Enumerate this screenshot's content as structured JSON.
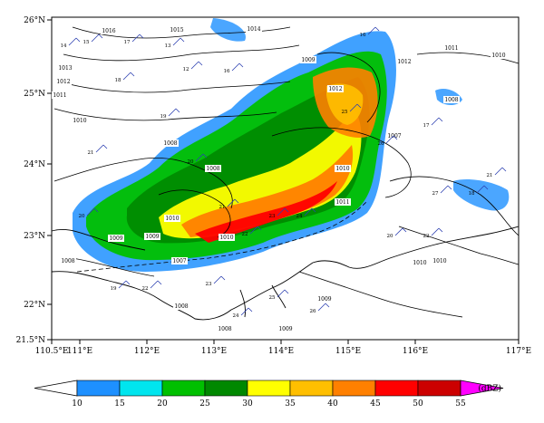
{
  "map": {
    "lon_ticks": [
      "110.5°E",
      "111°E",
      "112°E",
      "113°E",
      "114°E",
      "115°E",
      "116°E",
      "117°E"
    ],
    "lat_ticks": [
      "21.5°N",
      "22°N",
      "23°N",
      "24°N",
      "25°N",
      "26°N"
    ],
    "isobar_labels": [
      "1016",
      "1015",
      "1014",
      "1013",
      "1012",
      "1011",
      "1010",
      "1009",
      "1008",
      "1012",
      "1009",
      "1008",
      "1010",
      "1008",
      "1007",
      "1010",
      "1009",
      "1010",
      "1009",
      "1008",
      "1010",
      "1009",
      "1011",
      "1012",
      "1008",
      "1010",
      "1007",
      "1010",
      "1008",
      "1011"
    ],
    "station_values": [
      "14",
      "15",
      "17",
      "13",
      "12",
      "16",
      "18",
      "19",
      "20",
      "21",
      "22",
      "23",
      "24",
      "25",
      "26",
      "27",
      "18",
      "16",
      "17",
      "21",
      "20",
      "19",
      "22",
      "23",
      "24",
      "25",
      "26",
      "21",
      "20",
      "22"
    ]
  },
  "colorbar": {
    "unit": "(dBZ)",
    "labels": [
      "10",
      "15",
      "20",
      "25",
      "30",
      "35",
      "40",
      "45",
      "50",
      "55"
    ],
    "colors": [
      "#1e90ff",
      "#00e5ee",
      "#00c000",
      "#008800",
      "#ffff00",
      "#ffbf00",
      "#ff8000",
      "#ff0000",
      "#cc0000",
      "#ff69b4",
      "#ff00ff"
    ]
  }
}
